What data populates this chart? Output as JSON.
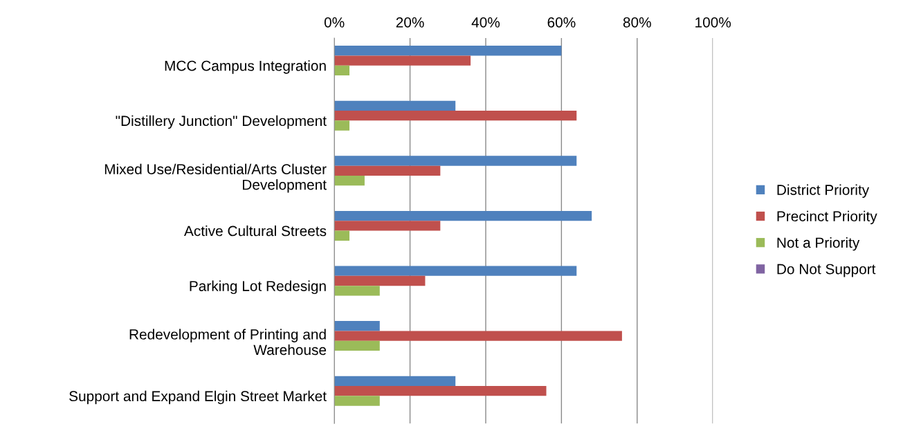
{
  "chart_data": {
    "type": "bar",
    "orientation": "horizontal",
    "categories": [
      "MCC Campus Integration",
      "\"Distillery Junction\" Development",
      "Mixed Use/Residential/Arts Cluster\nDevelopment",
      "Active Cultural Streets",
      "Parking Lot Redesign",
      "Redevelopment of Printing and\nWarehouse",
      "Support and Expand Elgin Street Market"
    ],
    "series": [
      {
        "name": "District Priority",
        "color": "#4f81bd",
        "values": [
          60,
          32,
          64,
          68,
          64,
          12,
          32
        ]
      },
      {
        "name": "Precinct Priority",
        "color": "#c0504d",
        "values": [
          36,
          64,
          28,
          28,
          24,
          76,
          56
        ]
      },
      {
        "name": "Not a Priority",
        "color": "#9bbb59",
        "values": [
          4,
          4,
          8,
          4,
          12,
          12,
          12
        ]
      },
      {
        "name": "Do Not Support",
        "color": "#8064a2",
        "values": [
          0,
          0,
          0,
          0,
          0,
          0,
          0
        ]
      }
    ],
    "xlim": [
      0,
      100
    ],
    "xticks": [
      {
        "value": 0,
        "label": "0%"
      },
      {
        "value": 20,
        "label": "20%"
      },
      {
        "value": 40,
        "label": "40%"
      },
      {
        "value": 60,
        "label": "60%"
      },
      {
        "value": 80,
        "label": "80%"
      },
      {
        "value": 100,
        "label": "100%"
      }
    ],
    "grid": "x",
    "legend": "right"
  }
}
